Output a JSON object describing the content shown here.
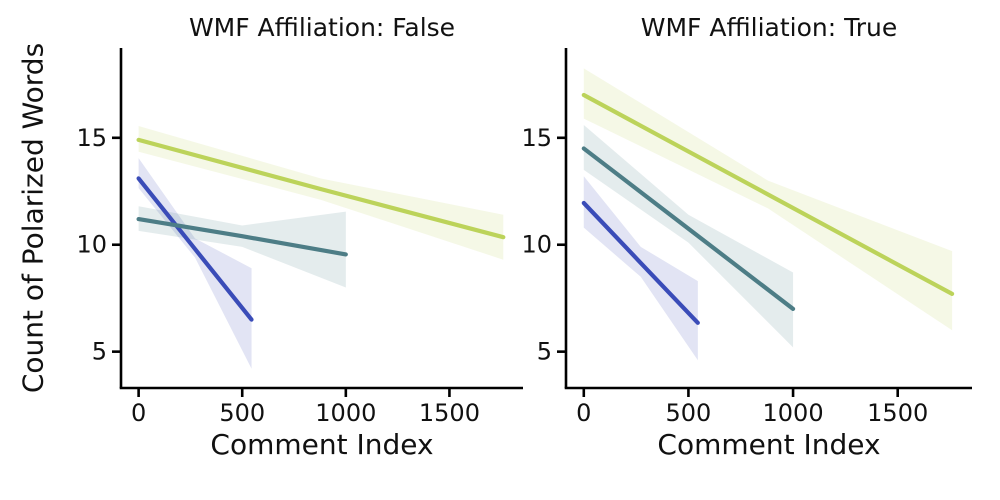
{
  "figure": {
    "background": "#ffffff",
    "axis_color": "#000000",
    "text_color": "#111111",
    "ylabel": "Count of Polarized Words"
  },
  "chart_data": [
    {
      "type": "line",
      "title": "WMF Affiliation: False",
      "xlabel": "Comment Index",
      "ylabel": "Count of Polarized Words",
      "xlim": [
        -85,
        1855
      ],
      "ylim": [
        3.3,
        19.2
      ],
      "xticks": [
        0,
        500,
        1000,
        1500
      ],
      "yticks": [
        5,
        10,
        15
      ],
      "grid": false,
      "legend": "none",
      "series": [
        {
          "name": "series-blue",
          "color": "#3a4cb8",
          "x": [
            0,
            272,
            545
          ],
          "y": [
            13.1,
            9.8,
            6.5
          ],
          "band_upper": [
            14.05,
            10.3,
            8.9
          ],
          "band_lower": [
            12.65,
            9.4,
            4.2
          ]
        },
        {
          "name": "series-teal",
          "color": "#4d7d86",
          "x": [
            0,
            500,
            1000
          ],
          "y": [
            11.2,
            10.4,
            9.55
          ],
          "band_upper": [
            11.8,
            10.9,
            11.55
          ],
          "band_lower": [
            10.65,
            9.9,
            8.0
          ]
        },
        {
          "name": "series-green",
          "color": "#bcd35a",
          "x": [
            0,
            880,
            1760
          ],
          "y": [
            14.9,
            12.6,
            10.35
          ],
          "band_upper": [
            15.55,
            13.1,
            11.4
          ],
          "band_lower": [
            14.35,
            12.1,
            9.3
          ]
        }
      ]
    },
    {
      "type": "line",
      "title": "WMF Affiliation: True",
      "xlabel": "Comment Index",
      "ylabel": "",
      "xlim": [
        -85,
        1855
      ],
      "ylim": [
        3.3,
        19.2
      ],
      "xticks": [
        0,
        500,
        1000,
        1500
      ],
      "yticks": [
        5,
        10,
        15
      ],
      "grid": false,
      "legend": "none",
      "series": [
        {
          "name": "series-blue",
          "color": "#3a4cb8",
          "x": [
            0,
            272,
            545
          ],
          "y": [
            11.95,
            9.15,
            6.35
          ],
          "band_upper": [
            13.2,
            9.9,
            8.3
          ],
          "band_lower": [
            10.8,
            8.5,
            4.6
          ]
        },
        {
          "name": "series-teal",
          "color": "#4d7d86",
          "x": [
            0,
            500,
            1000
          ],
          "y": [
            14.5,
            10.75,
            7.0
          ],
          "band_upper": [
            15.6,
            11.4,
            8.7
          ],
          "band_lower": [
            13.5,
            10.1,
            5.2
          ]
        },
        {
          "name": "series-green",
          "color": "#bcd35a",
          "x": [
            0,
            880,
            1760
          ],
          "y": [
            17.0,
            12.35,
            7.7
          ],
          "band_upper": [
            18.25,
            13.0,
            9.7
          ],
          "band_lower": [
            15.9,
            11.7,
            6.0
          ]
        }
      ]
    }
  ]
}
